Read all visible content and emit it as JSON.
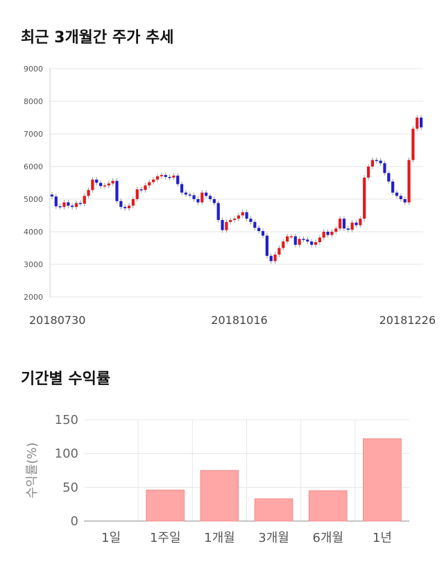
{
  "titles": {
    "price_trend": "최근 3개월간 주가 추세",
    "returns": "기간별 수익률"
  },
  "chart_data": [
    {
      "type": "candlestick",
      "ylim": [
        2000,
        9000
      ],
      "y_ticks": [
        2000,
        3000,
        4000,
        5000,
        6000,
        7000,
        8000,
        9000
      ],
      "x_tick_labels": [
        "20180730",
        "20181016",
        "20181226"
      ],
      "colors": {
        "up": "#e31a1c",
        "down": "#1f1fcc",
        "grid": "#e6e6e6"
      },
      "grid": true,
      "close_series": [
        5080,
        4780,
        4760,
        4900,
        4800,
        4760,
        4880,
        4860,
        5100,
        5280,
        5600,
        5500,
        5400,
        5420,
        5480,
        5560,
        4940,
        4760,
        4720,
        4800,
        5000,
        5300,
        5280,
        5420,
        5520,
        5600,
        5700,
        5740,
        5680,
        5660,
        5720,
        5460,
        5200,
        5140,
        5120,
        5000,
        4900,
        5200,
        5100,
        5000,
        4880,
        4360,
        4050,
        4300,
        4360,
        4400,
        4500,
        4600,
        4400,
        4300,
        4120,
        4020,
        3880,
        3260,
        3100,
        3300,
        3500,
        3700,
        3860,
        3860,
        3600,
        3780,
        3760,
        3700,
        3600,
        3680,
        3820,
        4000,
        3900,
        4000,
        4100,
        4400,
        4100,
        4060,
        4280,
        4200,
        4400,
        5660,
        6000,
        6200,
        6180,
        6100,
        5800,
        5540,
        5200,
        5100,
        5000,
        4900,
        6200,
        7160,
        7500,
        7200
      ]
    },
    {
      "type": "bar",
      "categories": [
        "1일",
        "1주일",
        "1개월",
        "3개월",
        "6개월",
        "1년"
      ],
      "values": [
        0,
        46,
        75,
        33,
        45,
        122
      ],
      "ylabel": "수익률(%)",
      "ylim": [
        0,
        150
      ],
      "y_ticks": [
        0,
        50,
        100,
        150
      ],
      "colors": {
        "bar": "#ffa6a6",
        "bar_border": "#ee8e8e",
        "grid": "#e6e6e6"
      },
      "grid": true
    }
  ]
}
